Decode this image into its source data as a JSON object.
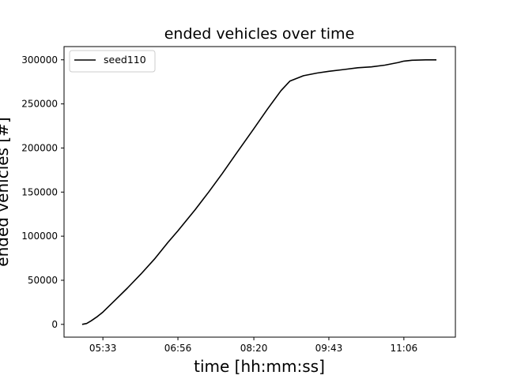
{
  "chart_data": {
    "type": "line",
    "title": "ended vehicles over time",
    "xlabel": "time [hh:mm:ss]",
    "ylabel": "ended vehicles [#]",
    "x_unit": "hh:mm",
    "xlim": [
      "04:50",
      "12:03"
    ],
    "ylim": [
      -14500,
      315000
    ],
    "x_ticks": [
      "05:33",
      "06:56",
      "08:20",
      "09:43",
      "11:06"
    ],
    "y_ticks": [
      0,
      50000,
      100000,
      150000,
      200000,
      250000,
      300000
    ],
    "y_tick_labels": [
      "0",
      "50000",
      "100000",
      "150000",
      "200000",
      "250000",
      "300000"
    ],
    "grid": false,
    "legend_position": "top-left",
    "series": [
      {
        "name": "seed110",
        "color": "#000000",
        "points": [
          [
            "05:10",
            0
          ],
          [
            "05:15",
            1000
          ],
          [
            "05:20",
            4000
          ],
          [
            "05:27",
            9000
          ],
          [
            "05:33",
            14000
          ],
          [
            "05:45",
            26000
          ],
          [
            "06:00",
            41000
          ],
          [
            "06:15",
            57000
          ],
          [
            "06:30",
            74000
          ],
          [
            "06:45",
            93000
          ],
          [
            "06:56",
            106000
          ],
          [
            "07:15",
            130000
          ],
          [
            "07:30",
            150000
          ],
          [
            "07:45",
            171000
          ],
          [
            "08:00",
            193000
          ],
          [
            "08:20",
            222000
          ],
          [
            "08:35",
            244000
          ],
          [
            "08:50",
            265000
          ],
          [
            "09:00",
            276000
          ],
          [
            "09:15",
            282000
          ],
          [
            "09:30",
            285000
          ],
          [
            "09:43",
            287000
          ],
          [
            "10:00",
            289000
          ],
          [
            "10:15",
            291000
          ],
          [
            "10:30",
            292000
          ],
          [
            "10:45",
            294000
          ],
          [
            "11:00",
            297000
          ],
          [
            "11:06",
            298500
          ],
          [
            "11:15",
            299500
          ],
          [
            "11:30",
            300000
          ],
          [
            "11:42",
            300000
          ]
        ]
      }
    ]
  }
}
